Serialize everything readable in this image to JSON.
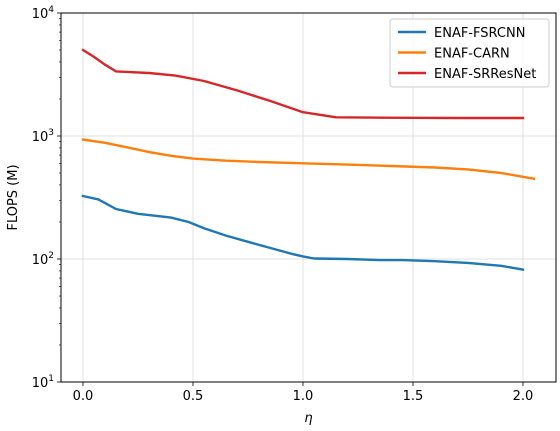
{
  "chart_data": {
    "type": "line",
    "title": "",
    "xlabel": "η",
    "ylabel": "FLOPS (M)",
    "xlim": [
      -0.1,
      2.15
    ],
    "ylim": [
      10,
      10000
    ],
    "yscale": "log",
    "grid": true,
    "legend_position": "top-right",
    "x_ticks": [
      0.0,
      0.5,
      1.0,
      1.5,
      2.0
    ],
    "x_tick_labels": [
      "0.0",
      "0.5",
      "1.0",
      "1.5",
      "2.0"
    ],
    "y_ticks": [
      10,
      100,
      1000,
      10000
    ],
    "y_tick_labels": [
      {
        "base": "10",
        "exp": "1"
      },
      {
        "base": "10",
        "exp": "2"
      },
      {
        "base": "10",
        "exp": "3"
      },
      {
        "base": "10",
        "exp": "4"
      }
    ],
    "series": [
      {
        "name": "ENAF-FSRCNN",
        "color": "#1f77b4",
        "x": [
          0.0,
          0.07,
          0.15,
          0.25,
          0.4,
          0.48,
          0.55,
          0.65,
          0.75,
          0.85,
          0.95,
          1.0,
          1.05,
          1.2,
          1.35,
          1.45,
          1.6,
          1.75,
          1.9,
          2.0
        ],
        "y": [
          325,
          305,
          255,
          233,
          217,
          200,
          178,
          155,
          138,
          123,
          110,
          105,
          101,
          100,
          98,
          98,
          96,
          93,
          88,
          82
        ]
      },
      {
        "name": "ENAF-CARN",
        "color": "#ff7f0e",
        "x": [
          0.0,
          0.1,
          0.2,
          0.3,
          0.4,
          0.5,
          0.65,
          0.8,
          1.0,
          1.2,
          1.4,
          1.6,
          1.75,
          1.9,
          2.05
        ],
        "y": [
          935,
          880,
          810,
          740,
          690,
          655,
          630,
          615,
          600,
          585,
          570,
          555,
          535,
          500,
          450
        ]
      },
      {
        "name": "ENAF-SRResNet",
        "color": "#d62728",
        "x": [
          0.0,
          0.05,
          0.1,
          0.15,
          0.3,
          0.42,
          0.55,
          0.7,
          0.85,
          1.0,
          1.15,
          1.3,
          1.5,
          1.7,
          2.0
        ],
        "y": [
          5000,
          4400,
          3800,
          3350,
          3250,
          3100,
          2800,
          2350,
          1930,
          1560,
          1420,
          1410,
          1405,
          1400,
          1400
        ]
      }
    ]
  }
}
